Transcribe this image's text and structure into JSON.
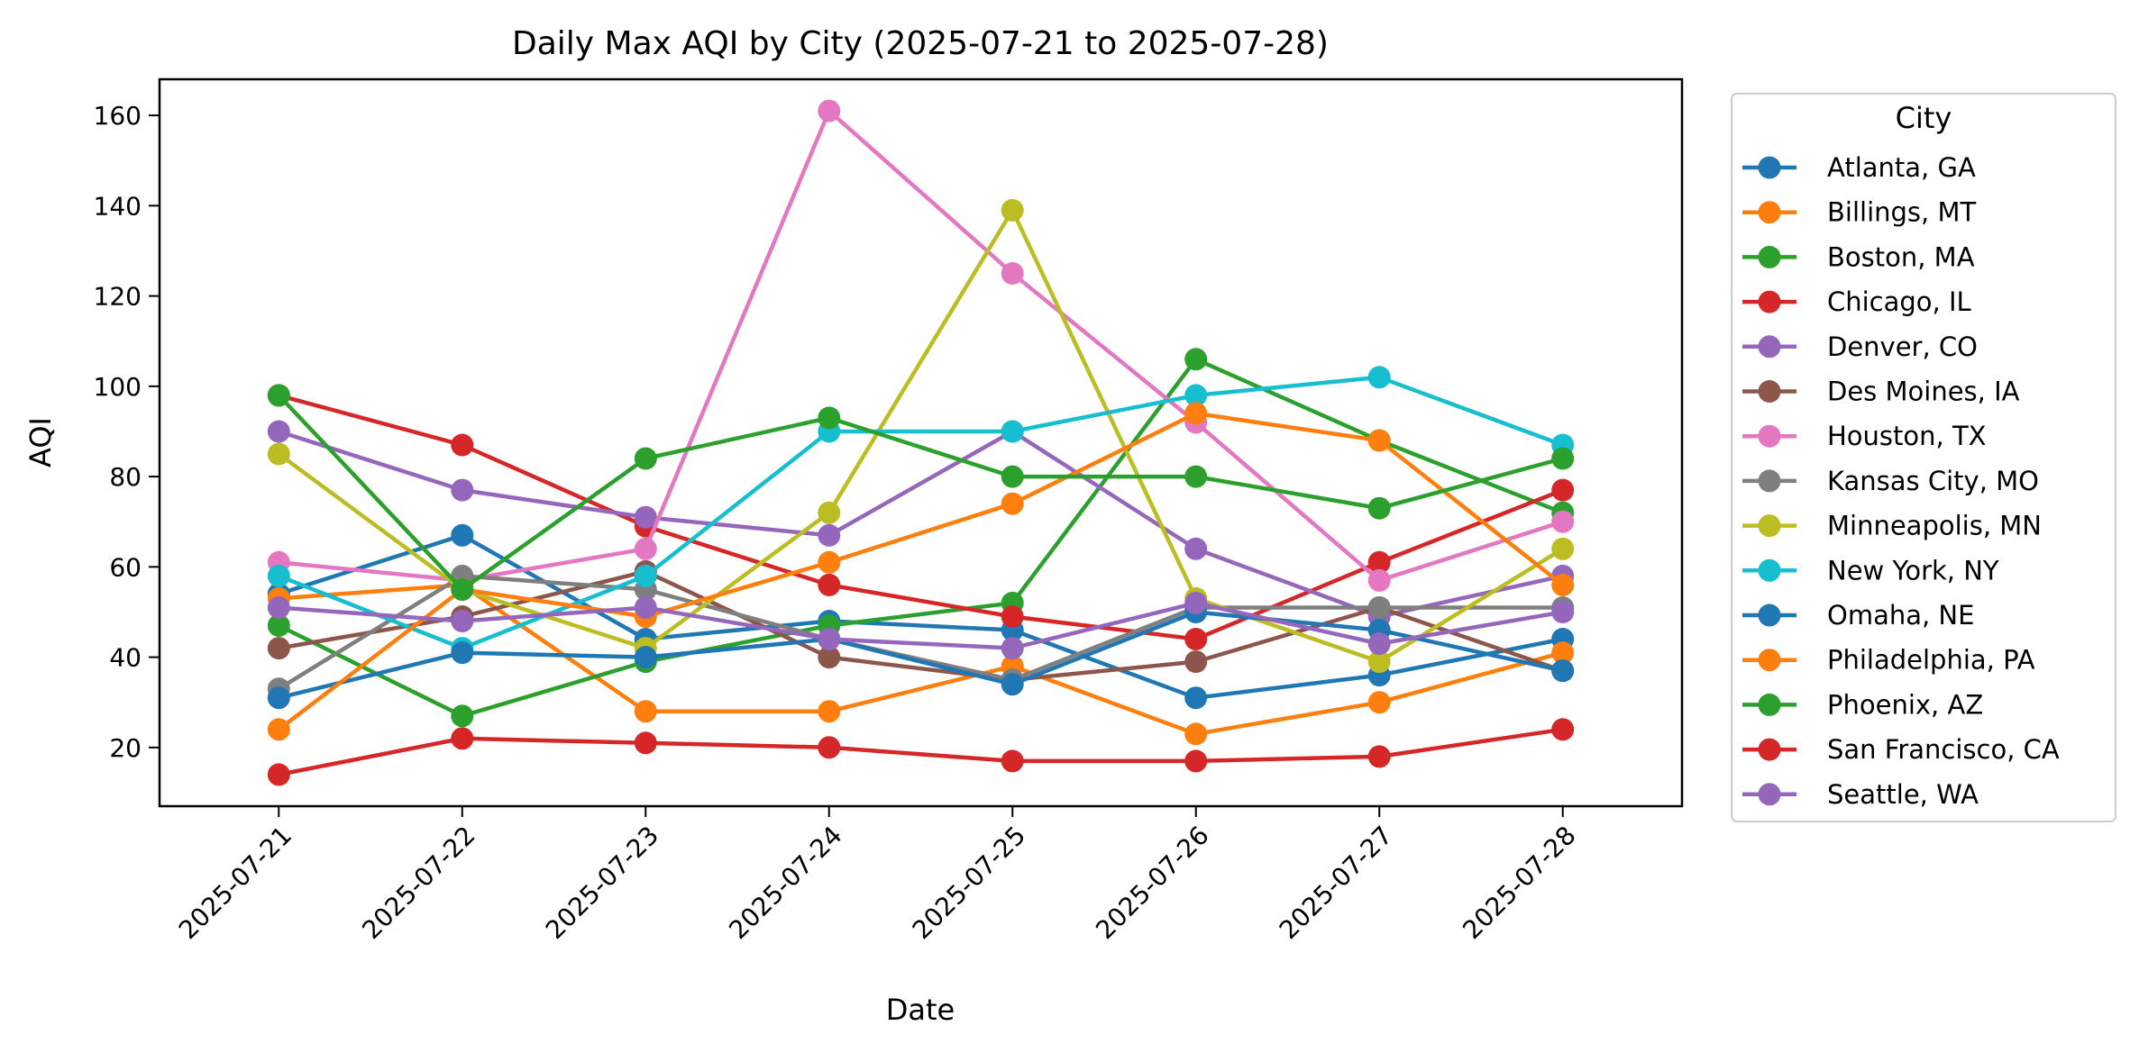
{
  "chart_data": {
    "type": "line",
    "title": "Daily Max AQI by City (2025-07-21 to 2025-07-28)",
    "xlabel": "Date",
    "ylabel": "AQI",
    "x": [
      "2025-07-21",
      "2025-07-22",
      "2025-07-23",
      "2025-07-24",
      "2025-07-25",
      "2025-07-26",
      "2025-07-27",
      "2025-07-28"
    ],
    "ylim": [
      7,
      168
    ],
    "yticks": [
      20,
      40,
      60,
      80,
      100,
      120,
      140,
      160
    ],
    "grid": false,
    "legend_title": "City",
    "legend_position": "outside-right",
    "series": [
      {
        "name": "Atlanta, GA",
        "color": "#1f77b4",
        "values": [
          54,
          67,
          44,
          48,
          46,
          31,
          36,
          44
        ]
      },
      {
        "name": "Billings, MT",
        "color": "#ff7f0e",
        "values": [
          53,
          56,
          28,
          28,
          38,
          23,
          30,
          41
        ]
      },
      {
        "name": "Boston, MA",
        "color": "#2ca02c",
        "values": [
          47,
          27,
          39,
          47,
          52,
          106,
          88,
          72
        ]
      },
      {
        "name": "Chicago, IL",
        "color": "#d62728",
        "values": [
          98,
          87,
          69,
          56,
          49,
          44,
          61,
          77
        ]
      },
      {
        "name": "Denver, CO",
        "color": "#9467bd",
        "values": [
          90,
          77,
          71,
          67,
          90,
          64,
          49,
          58
        ]
      },
      {
        "name": "Des Moines, IA",
        "color": "#8c564b",
        "values": [
          42,
          49,
          59,
          40,
          35,
          39,
          51,
          37
        ]
      },
      {
        "name": "Houston, TX",
        "color": "#e377c2",
        "values": [
          61,
          57,
          64,
          161,
          125,
          92,
          57,
          70
        ]
      },
      {
        "name": "Kansas City, MO",
        "color": "#7f7f7f",
        "values": [
          33,
          58,
          55,
          44,
          35,
          51,
          51,
          51
        ]
      },
      {
        "name": "Minneapolis, MN",
        "color": "#bcbd22",
        "values": [
          85,
          55,
          42,
          72,
          139,
          53,
          39,
          64
        ]
      },
      {
        "name": "New York, NY",
        "color": "#17becf",
        "values": [
          58,
          42,
          58,
          90,
          90,
          98,
          102,
          87
        ]
      },
      {
        "name": "Omaha, NE",
        "color": "#1f77b4",
        "values": [
          31,
          41,
          40,
          44,
          34,
          50,
          46,
          37
        ]
      },
      {
        "name": "Philadelphia, PA",
        "color": "#ff7f0e",
        "values": [
          24,
          55,
          49,
          61,
          74,
          94,
          88,
          56
        ]
      },
      {
        "name": "Phoenix, AZ",
        "color": "#2ca02c",
        "values": [
          98,
          55,
          84,
          93,
          80,
          80,
          73,
          84
        ]
      },
      {
        "name": "San Francisco, CA",
        "color": "#d62728",
        "values": [
          14,
          22,
          21,
          20,
          17,
          17,
          18,
          24
        ]
      },
      {
        "name": "Seattle, WA",
        "color": "#9467bd",
        "values": [
          51,
          48,
          51,
          44,
          42,
          52,
          43,
          50
        ]
      }
    ]
  }
}
